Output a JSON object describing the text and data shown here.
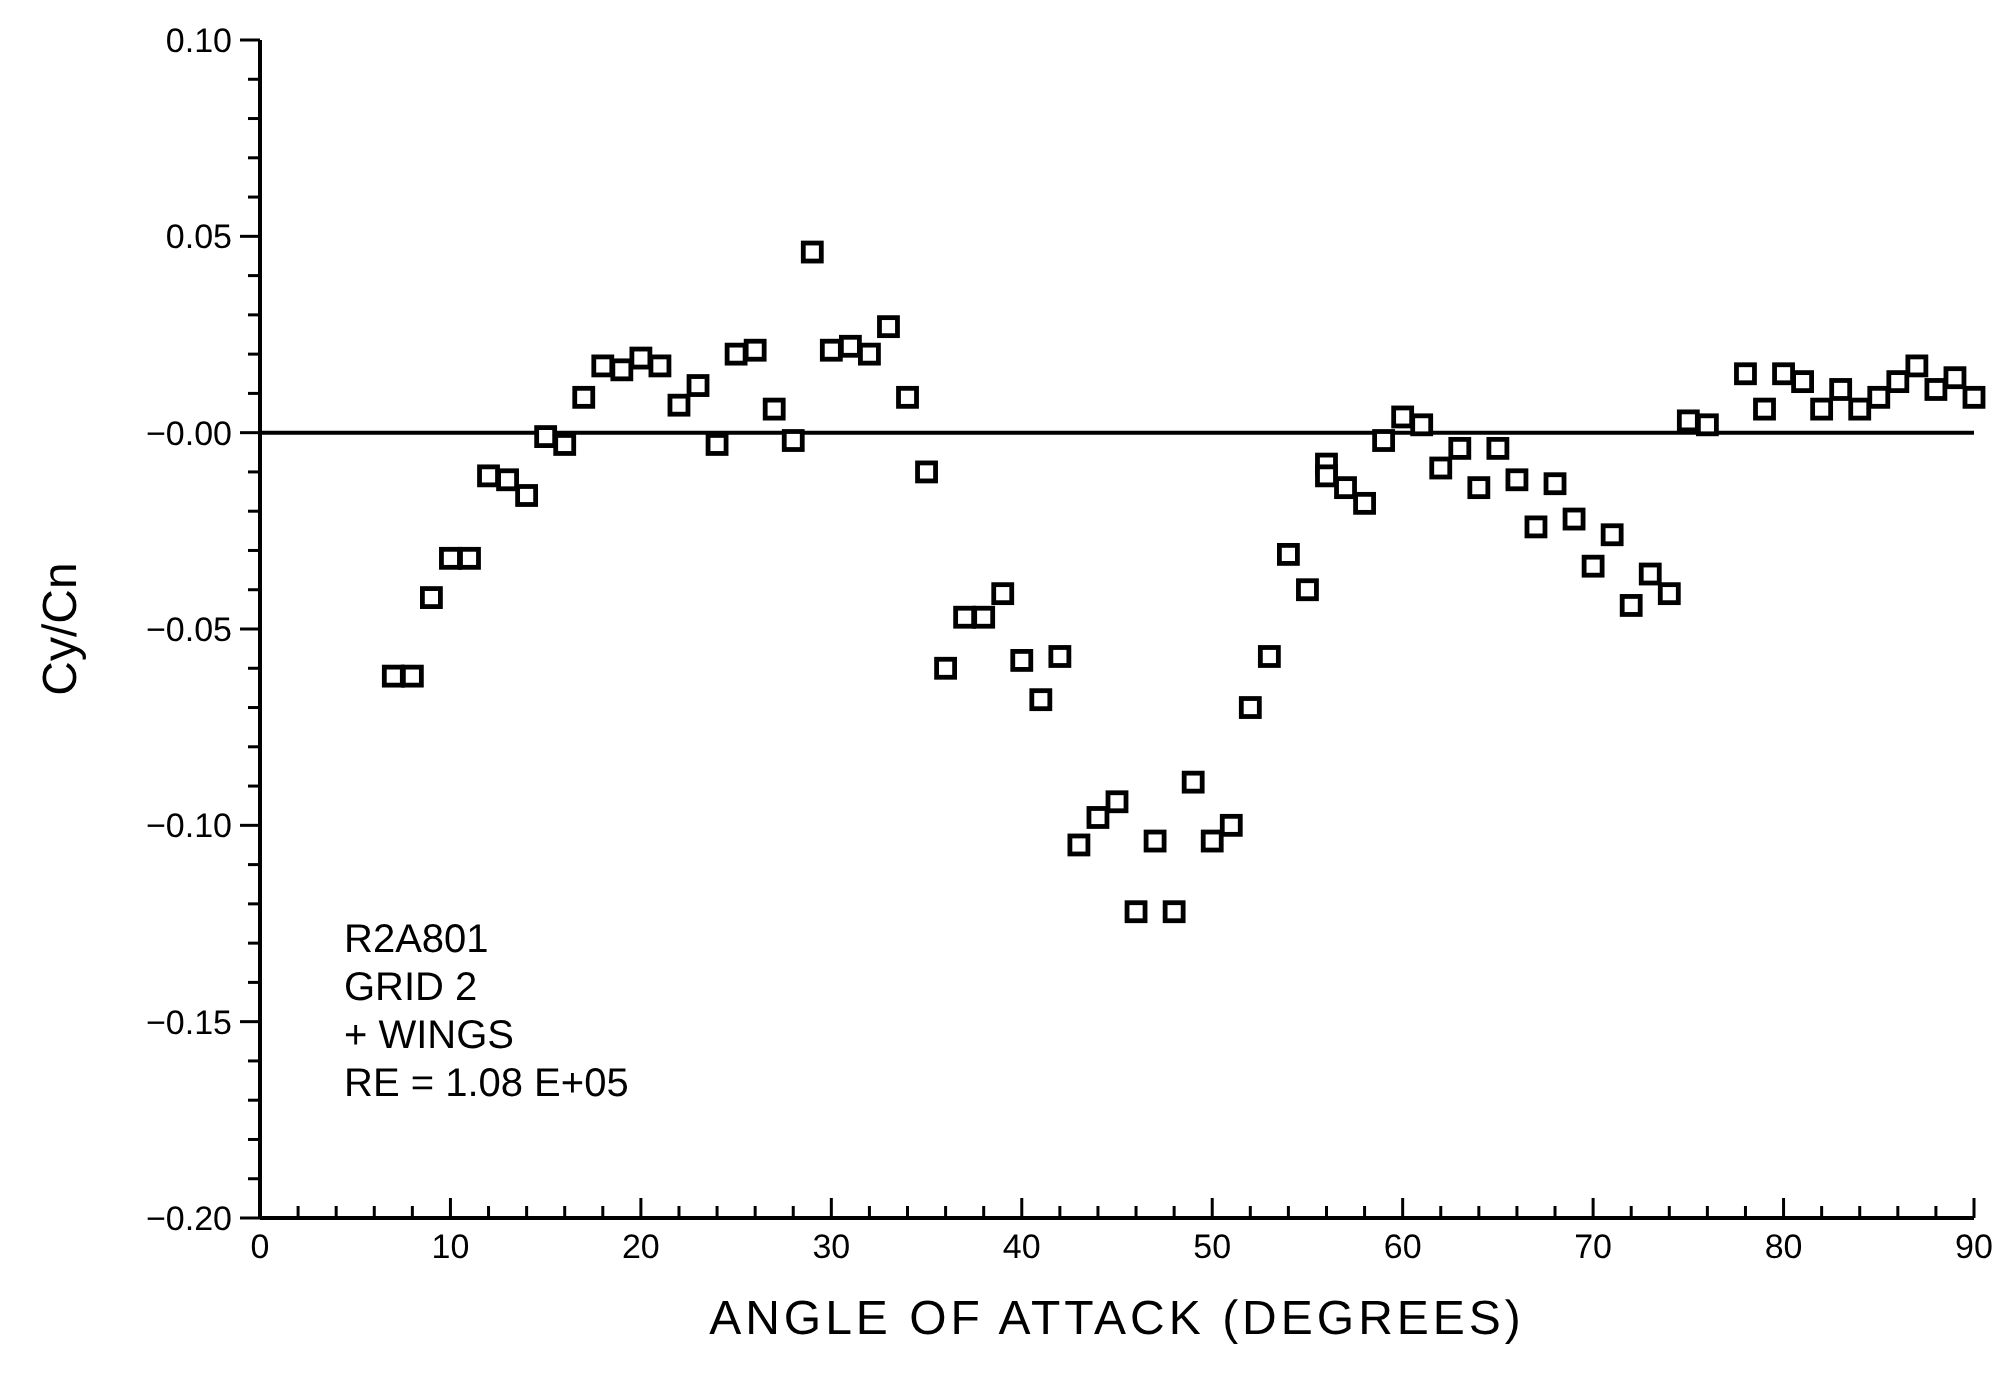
{
  "chart_data": {
    "type": "scatter",
    "xlabel": "ANGLE OF ATTACK (DEGREES)",
    "ylabel": "Cy/Cn",
    "marker": "square",
    "xlim": [
      0,
      90
    ],
    "ylim": [
      -0.2,
      0.1
    ],
    "xticks": [
      0,
      {
        "value": 2,
        "label": null
      },
      {
        "value": 4,
        "label": null
      },
      {
        "value": 6,
        "label": null
      },
      {
        "value": 8,
        "label": null
      },
      10,
      {
        "value": 12,
        "label": null
      },
      {
        "value": 14,
        "label": null
      },
      {
        "value": 16,
        "label": null
      },
      {
        "value": 18,
        "label": null
      },
      20,
      {
        "value": 22,
        "label": null
      },
      {
        "value": 24,
        "label": null
      },
      {
        "value": 26,
        "label": null
      },
      {
        "value": 28,
        "label": null
      },
      30,
      {
        "value": 32,
        "label": null
      },
      {
        "value": 34,
        "label": null
      },
      {
        "value": 36,
        "label": null
      },
      {
        "value": 38,
        "label": null
      },
      40,
      {
        "value": 42,
        "label": null
      },
      {
        "value": 44,
        "label": null
      },
      {
        "value": 46,
        "label": null
      },
      {
        "value": 48,
        "label": null
      },
      50,
      {
        "value": 52,
        "label": null
      },
      {
        "value": 54,
        "label": null
      },
      {
        "value": 56,
        "label": null
      },
      {
        "value": 58,
        "label": null
      },
      60,
      {
        "value": 62,
        "label": null
      },
      {
        "value": 64,
        "label": null
      },
      {
        "value": 66,
        "label": null
      },
      {
        "value": 68,
        "label": null
      },
      70,
      {
        "value": 72,
        "label": null
      },
      {
        "value": 74,
        "label": null
      },
      {
        "value": 76,
        "label": null
      },
      {
        "value": 78,
        "label": null
      },
      80,
      {
        "value": 82,
        "label": null
      },
      {
        "value": 84,
        "label": null
      },
      {
        "value": 86,
        "label": null
      },
      {
        "value": 88,
        "label": null
      },
      90
    ],
    "yticks": [
      {
        "value": -0.2,
        "label": "−0.20"
      },
      {
        "value": -0.19,
        "label": null
      },
      {
        "value": -0.18,
        "label": null
      },
      {
        "value": -0.17,
        "label": null
      },
      {
        "value": -0.16,
        "label": null
      },
      {
        "value": -0.15,
        "label": "−0.15"
      },
      {
        "value": -0.14,
        "label": null
      },
      {
        "value": -0.13,
        "label": null
      },
      {
        "value": -0.12,
        "label": null
      },
      {
        "value": -0.11,
        "label": null
      },
      {
        "value": -0.1,
        "label": "−0.10"
      },
      {
        "value": -0.09,
        "label": null
      },
      {
        "value": -0.08,
        "label": null
      },
      {
        "value": -0.07,
        "label": null
      },
      {
        "value": -0.06,
        "label": null
      },
      {
        "value": -0.05,
        "label": "−0.05"
      },
      {
        "value": -0.04,
        "label": null
      },
      {
        "value": -0.03,
        "label": null
      },
      {
        "value": -0.02,
        "label": null
      },
      {
        "value": -0.01,
        "label": null
      },
      {
        "value": 0,
        "label": "−0.00"
      },
      {
        "value": 0.01,
        "label": null
      },
      {
        "value": 0.02,
        "label": null
      },
      {
        "value": 0.03,
        "label": null
      },
      {
        "value": 0.04,
        "label": null
      },
      {
        "value": 0.05,
        "label": "0.05"
      },
      {
        "value": 0.06,
        "label": null
      },
      {
        "value": 0.07,
        "label": null
      },
      {
        "value": 0.08,
        "label": null
      },
      {
        "value": 0.09,
        "label": null
      },
      {
        "value": 0.1,
        "label": "0.10"
      }
    ],
    "ref_lines": [
      {
        "axis": "y",
        "value": 0,
        "label": null,
        "color": "#000000"
      }
    ],
    "annotations": [
      "R2A801",
      "GRID 2",
      "+ WINGS",
      "RE = 1.08 E+05"
    ],
    "series": [
      {
        "color": "#000000",
        "x": [
          7,
          8,
          9,
          10,
          11,
          12,
          13,
          14,
          15,
          16,
          17,
          18,
          19,
          20,
          21,
          22,
          23,
          24,
          25,
          26,
          27,
          28,
          29,
          30,
          31,
          32,
          33,
          34,
          35,
          36,
          37,
          38,
          39,
          40,
          41,
          42,
          43,
          44,
          45,
          46,
          47,
          48,
          49,
          50,
          51,
          52,
          53,
          54,
          55,
          56,
          56,
          57,
          58,
          59,
          60,
          61,
          62,
          63,
          64,
          65,
          66,
          67,
          68,
          69,
          70,
          71,
          72,
          73,
          74,
          75,
          76,
          78,
          79,
          80,
          81,
          82,
          83,
          84,
          85,
          86,
          87,
          88,
          89,
          90
        ],
        "values": [
          -0.062,
          -0.062,
          -0.042,
          -0.032,
          -0.032,
          -0.011,
          -0.012,
          -0.016,
          -0.001,
          -0.003,
          0.009,
          0.017,
          0.016,
          0.019,
          0.017,
          0.007,
          0.012,
          -0.003,
          0.02,
          0.021,
          0.006,
          -0.002,
          0.046,
          0.021,
          0.022,
          0.02,
          0.027,
          0.009,
          -0.01,
          -0.06,
          -0.047,
          -0.047,
          -0.041,
          -0.058,
          -0.068,
          -0.057,
          -0.105,
          -0.098,
          -0.094,
          -0.122,
          -0.104,
          -0.122,
          -0.089,
          -0.104,
          -0.1,
          -0.07,
          -0.057,
          -0.031,
          -0.04,
          -0.008,
          -0.011,
          -0.014,
          -0.018,
          -0.002,
          0.004,
          0.002,
          -0.009,
          -0.004,
          -0.014,
          -0.004,
          -0.012,
          -0.024,
          -0.013,
          -0.022,
          -0.034,
          -0.026,
          -0.044,
          -0.036,
          -0.041,
          0.003,
          0.002,
          0.015,
          0.006,
          0.015,
          0.013,
          0.006,
          0.011,
          0.006,
          0.009,
          0.013,
          0.017,
          0.011,
          0.014,
          0.009
        ]
      }
    ]
  }
}
